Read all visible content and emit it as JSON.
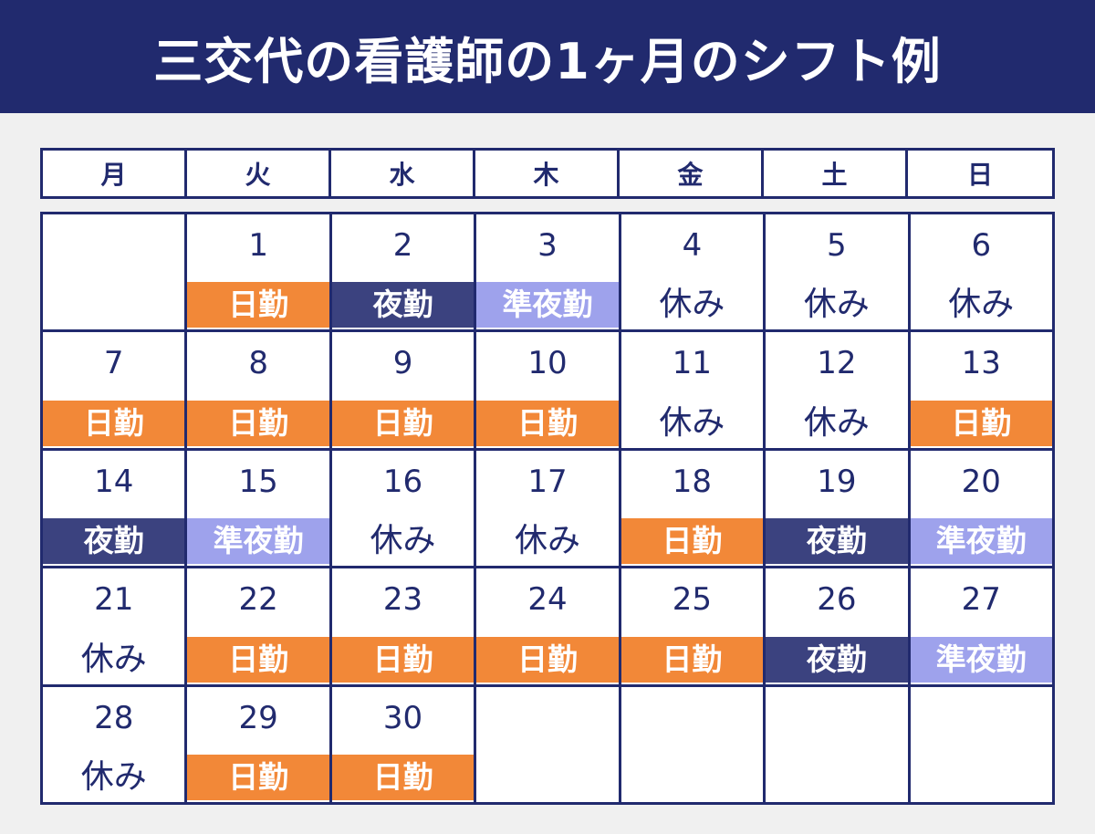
{
  "title": "三交代の看護師の1ヶ月のシフト例",
  "weekdays": [
    "月",
    "火",
    "水",
    "木",
    "金",
    "土",
    "日"
  ],
  "colors": {
    "header_bg": "#212a6e",
    "day_shift": "#f28838",
    "night_shift": "#3b427f",
    "semi_night_shift": "#9ea2ec"
  },
  "calendar": [
    {
      "day": "",
      "shift": "",
      "type": ""
    },
    {
      "day": "1",
      "shift": "日勤",
      "type": "day"
    },
    {
      "day": "2",
      "shift": "夜勤",
      "type": "night"
    },
    {
      "day": "3",
      "shift": "準夜勤",
      "type": "semi"
    },
    {
      "day": "4",
      "shift": "休み",
      "type": "off"
    },
    {
      "day": "5",
      "shift": "休み",
      "type": "off"
    },
    {
      "day": "6",
      "shift": "休み",
      "type": "off"
    },
    {
      "day": "7",
      "shift": "日勤",
      "type": "day"
    },
    {
      "day": "8",
      "shift": "日勤",
      "type": "day"
    },
    {
      "day": "9",
      "shift": "日勤",
      "type": "day"
    },
    {
      "day": "10",
      "shift": "日勤",
      "type": "day"
    },
    {
      "day": "11",
      "shift": "休み",
      "type": "off"
    },
    {
      "day": "12",
      "shift": "休み",
      "type": "off"
    },
    {
      "day": "13",
      "shift": "日勤",
      "type": "day"
    },
    {
      "day": "14",
      "shift": "夜勤",
      "type": "night"
    },
    {
      "day": "15",
      "shift": "準夜勤",
      "type": "semi"
    },
    {
      "day": "16",
      "shift": "休み",
      "type": "off"
    },
    {
      "day": "17",
      "shift": "休み",
      "type": "off"
    },
    {
      "day": "18",
      "shift": "日勤",
      "type": "day"
    },
    {
      "day": "19",
      "shift": "夜勤",
      "type": "night"
    },
    {
      "day": "20",
      "shift": "準夜勤",
      "type": "semi"
    },
    {
      "day": "21",
      "shift": "休み",
      "type": "off"
    },
    {
      "day": "22",
      "shift": "日勤",
      "type": "day"
    },
    {
      "day": "23",
      "shift": "日勤",
      "type": "day"
    },
    {
      "day": "24",
      "shift": "日勤",
      "type": "day"
    },
    {
      "day": "25",
      "shift": "日勤",
      "type": "day"
    },
    {
      "day": "26",
      "shift": "夜勤",
      "type": "night"
    },
    {
      "day": "27",
      "shift": "準夜勤",
      "type": "semi"
    },
    {
      "day": "28",
      "shift": "休み",
      "type": "off"
    },
    {
      "day": "29",
      "shift": "日勤",
      "type": "day"
    },
    {
      "day": "30",
      "shift": "日勤",
      "type": "day"
    },
    {
      "day": "",
      "shift": "",
      "type": ""
    },
    {
      "day": "",
      "shift": "",
      "type": ""
    },
    {
      "day": "",
      "shift": "",
      "type": ""
    },
    {
      "day": "",
      "shift": "",
      "type": ""
    }
  ]
}
